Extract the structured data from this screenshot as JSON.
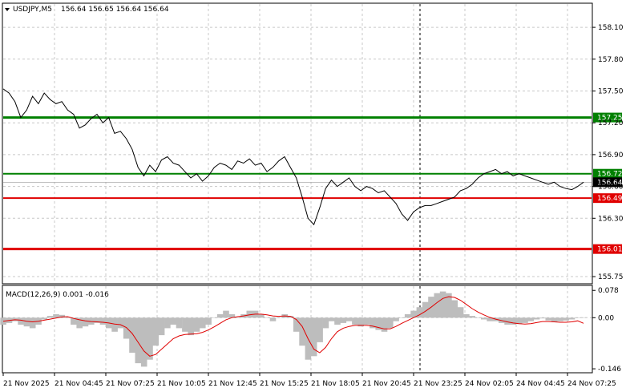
{
  "header": {
    "symbol": "USDJPY,M5",
    "ohlc": "156.64 156.65 156.64 156.64",
    "arrow_icon": "triangle-down-icon"
  },
  "colors": {
    "price_line": "#000000",
    "grid": "#c8c8c8",
    "support_green": "#008000",
    "resistance_red": "#e00000",
    "current_price_bg": "#000000",
    "macd_hist": "#bdbdbd",
    "macd_signal": "#e00000"
  },
  "chart_data": {
    "type": "line",
    "price_panel": {
      "ylim": [
        155.69,
        158.32
      ],
      "yticks": [
        "158.10",
        "157.80",
        "157.50",
        "157.20",
        "156.90",
        "156.60",
        "156.30",
        "155.75"
      ],
      "ytick_values": [
        158.1,
        157.8,
        157.5,
        157.2,
        156.9,
        156.6,
        156.3,
        155.75
      ],
      "price_series": [
        157.52,
        157.48,
        157.4,
        157.25,
        157.32,
        157.45,
        157.38,
        157.48,
        157.42,
        157.38,
        157.4,
        157.32,
        157.28,
        157.15,
        157.18,
        157.24,
        157.28,
        157.2,
        157.25,
        157.1,
        157.12,
        157.05,
        156.95,
        156.78,
        156.7,
        156.8,
        156.74,
        156.85,
        156.88,
        156.82,
        156.8,
        156.74,
        156.68,
        156.72,
        156.65,
        156.7,
        156.78,
        156.82,
        156.8,
        156.76,
        156.84,
        156.82,
        156.86,
        156.8,
        156.82,
        156.74,
        156.78,
        156.84,
        156.88,
        156.78,
        156.68,
        156.5,
        156.3,
        156.24,
        156.4,
        156.58,
        156.66,
        156.6,
        156.64,
        156.68,
        156.6,
        156.56,
        156.6,
        156.58,
        156.54,
        156.56,
        156.5,
        156.44,
        156.34,
        156.28,
        156.36,
        156.4,
        156.42,
        156.42,
        156.44,
        156.46,
        156.48,
        156.5,
        156.56,
        156.58,
        156.62,
        156.68,
        156.72,
        156.74,
        156.76,
        156.72,
        156.74,
        156.7,
        156.72,
        156.7,
        156.68,
        156.66,
        156.64,
        156.62,
        156.64,
        156.6,
        156.58,
        156.57,
        156.6,
        156.64
      ],
      "levels": [
        {
          "value": 157.25,
          "label": "157.25",
          "color": "#008000",
          "width": 3
        },
        {
          "value": 156.72,
          "label": "156.72",
          "color": "#008000",
          "width": 2
        },
        {
          "value": 156.49,
          "label": "156.49",
          "color": "#e00000",
          "width": 2
        },
        {
          "value": 156.01,
          "label": "156.01",
          "color": "#e00000",
          "width": 3
        }
      ],
      "current_price": {
        "value": 156.64,
        "label": "156.64"
      }
    },
    "macd_panel": {
      "title": "MACD(12,26,9) 0.001 -0.016",
      "ylim": [
        -0.155,
        0.09
      ],
      "yticks": [
        "0.078",
        "0.00",
        "-0.146"
      ],
      "ytick_values": [
        0.078,
        0.0,
        -0.146
      ],
      "histogram": [
        -0.02,
        -0.015,
        -0.01,
        -0.02,
        -0.025,
        -0.03,
        -0.02,
        -0.005,
        0.005,
        0.01,
        0.008,
        0.0,
        -0.02,
        -0.03,
        -0.025,
        -0.02,
        -0.015,
        -0.02,
        -0.03,
        -0.04,
        -0.03,
        -0.06,
        -0.1,
        -0.13,
        -0.14,
        -0.12,
        -0.08,
        -0.05,
        -0.03,
        -0.02,
        -0.03,
        -0.04,
        -0.05,
        -0.04,
        -0.03,
        -0.02,
        0.0,
        0.01,
        0.02,
        0.01,
        0.0,
        0.01,
        0.02,
        0.02,
        0.01,
        0.0,
        -0.01,
        0.0,
        0.01,
        0.005,
        -0.04,
        -0.08,
        -0.12,
        -0.11,
        -0.07,
        -0.03,
        -0.01,
        -0.02,
        -0.015,
        -0.01,
        -0.02,
        -0.025,
        -0.02,
        -0.03,
        -0.035,
        -0.04,
        -0.03,
        -0.01,
        0.0,
        0.01,
        0.02,
        0.03,
        0.045,
        0.06,
        0.07,
        0.075,
        0.07,
        0.05,
        0.03,
        0.01,
        0.005,
        0.0,
        -0.005,
        -0.01,
        -0.01,
        -0.015,
        -0.02,
        -0.02,
        -0.018,
        -0.015,
        -0.01,
        -0.005,
        -0.002,
        -0.008,
        -0.012,
        -0.01,
        -0.008,
        -0.005,
        0.0,
        0.001
      ],
      "signal": [
        -0.01,
        -0.008,
        -0.006,
        -0.007,
        -0.01,
        -0.012,
        -0.01,
        -0.007,
        -0.004,
        -0.001,
        0.002,
        0.003,
        -0.002,
        -0.006,
        -0.009,
        -0.011,
        -0.012,
        -0.013,
        -0.015,
        -0.018,
        -0.02,
        -0.028,
        -0.045,
        -0.07,
        -0.095,
        -0.11,
        -0.105,
        -0.09,
        -0.075,
        -0.06,
        -0.052,
        -0.048,
        -0.047,
        -0.046,
        -0.042,
        -0.035,
        -0.026,
        -0.016,
        -0.006,
        0.0,
        0.003,
        0.005,
        0.008,
        0.01,
        0.01,
        0.008,
        0.005,
        0.004,
        0.005,
        0.004,
        -0.005,
        -0.025,
        -0.06,
        -0.09,
        -0.1,
        -0.085,
        -0.06,
        -0.04,
        -0.03,
        -0.025,
        -0.022,
        -0.022,
        -0.022,
        -0.024,
        -0.028,
        -0.032,
        -0.032,
        -0.025,
        -0.016,
        -0.008,
        0.0,
        0.008,
        0.018,
        0.03,
        0.043,
        0.055,
        0.06,
        0.058,
        0.05,
        0.038,
        0.026,
        0.016,
        0.008,
        0.001,
        -0.004,
        -0.008,
        -0.012,
        -0.015,
        -0.017,
        -0.018,
        -0.017,
        -0.014,
        -0.011,
        -0.011,
        -0.012,
        -0.013,
        -0.013,
        -0.012,
        -0.009,
        -0.016
      ]
    },
    "x_tick_labels": [
      "21 Nov 2025",
      "21 Nov 04:45",
      "21 Nov 07:25",
      "21 Nov 10:05",
      "21 Nov 12:45",
      "21 Nov 15:25",
      "21 Nov 18:05",
      "21 Nov 20:45",
      "21 Nov 23:25",
      "24 Nov 02:05",
      "24 Nov 04:45",
      "24 Nov 07:25"
    ],
    "session_divider_label": "21 Nov 23:25",
    "grid": true
  }
}
